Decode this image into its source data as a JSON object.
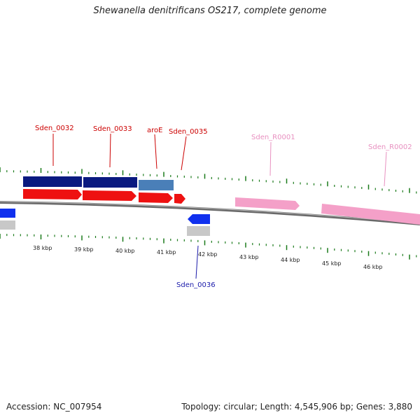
{
  "title": "Shewanella denitrificans OS217, complete genome",
  "footer": {
    "accession": "Accession: NC_007954",
    "summary": "Topology: circular; Length: 4,545,906 bp; Genes: 3,880"
  },
  "colors": {
    "cds_forward": "#ee1111",
    "gene_forward": "#0a1a80",
    "aroE_gene": "#4a7fb8",
    "cds_reverse": "#1030ee",
    "gene_reverse": "#c8c8c8",
    "rrna": "#f4a0c8",
    "tick_green": "#1a7a1a",
    "label_red": "#cc0000",
    "label_blue": "#1a1aaa",
    "label_pink": "#e890c0",
    "backbone": "#888888"
  },
  "kbp_labels": [
    "38 kbp",
    "39 kbp",
    "40 kbp",
    "41 kbp",
    "42 kbp",
    "43 kbp",
    "44 kbp",
    "45 kbp",
    "46 kbp"
  ],
  "gene_labels": {
    "sden_0032": "Sden_0032",
    "sden_0033": "Sden_0033",
    "aroE": "aroE",
    "sden_0035": "Sden_0035",
    "sden_r0001": "Sden_R0001",
    "sden_r0002": "Sden_R0002",
    "sden_0036": "Sden_0036"
  }
}
